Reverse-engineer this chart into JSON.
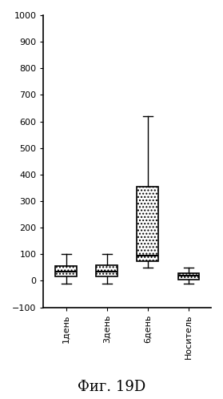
{
  "categories": [
    "1день",
    "3день",
    "6день",
    "Носитель"
  ],
  "boxes": [
    {
      "q1": 15,
      "median": 35,
      "q3": 55,
      "whisker_low": -10,
      "whisker_high": 100
    },
    {
      "q1": 15,
      "median": 35,
      "q3": 60,
      "whisker_low": -10,
      "whisker_high": 100
    },
    {
      "q1": 75,
      "median": 95,
      "q3": 355,
      "whisker_low": 50,
      "whisker_high": 620
    },
    {
      "q1": 5,
      "median": 18,
      "q3": 30,
      "whisker_low": -10,
      "whisker_high": 50
    }
  ],
  "ylim": [
    -100,
    1000
  ],
  "yticks": [
    -100,
    0,
    100,
    200,
    300,
    400,
    500,
    600,
    700,
    800,
    900,
    1000
  ],
  "box_hatch": "....",
  "title": "Фиг. 19D",
  "title_fontsize": 13,
  "tick_fontsize": 8,
  "background_color": "#ffffff"
}
